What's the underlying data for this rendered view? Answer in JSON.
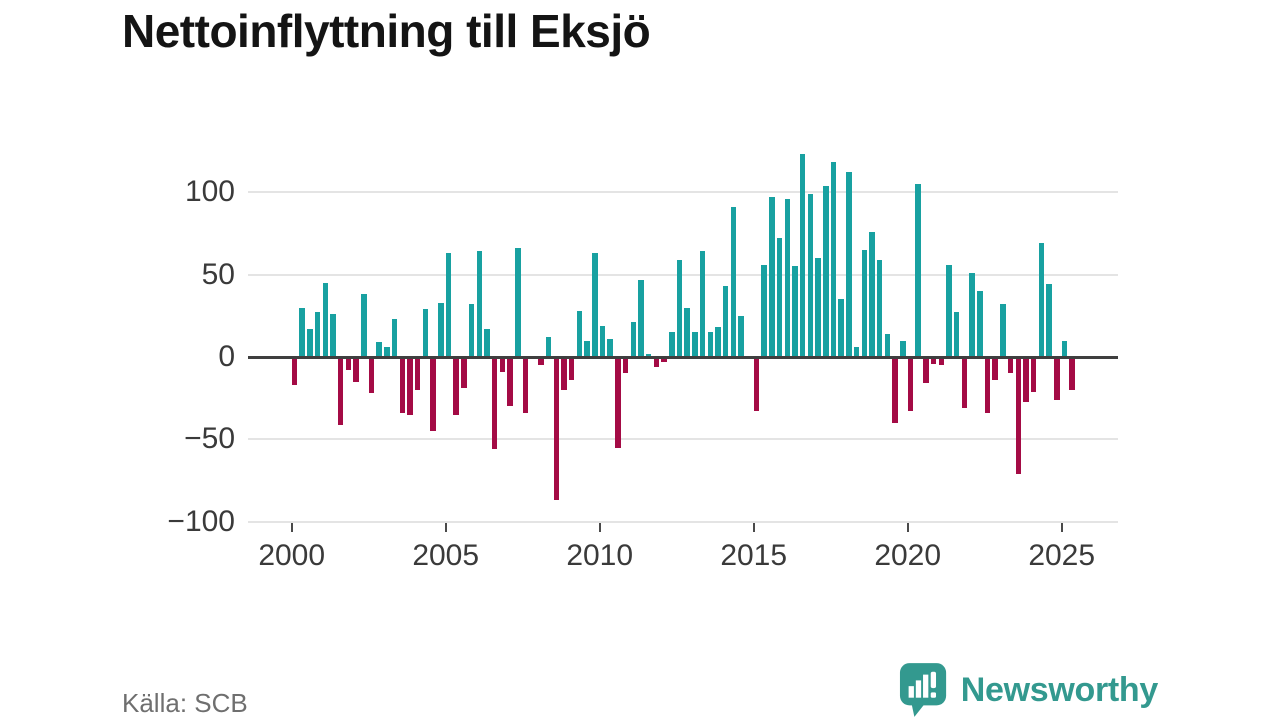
{
  "title": "Nettoinflyttning till Eksjö",
  "source": "Källa: SCB",
  "brand": {
    "name": "Newsworthy",
    "color": "#33998f"
  },
  "colors": {
    "positive": "#18a1a1",
    "negative": "#a40b45",
    "zero_line": "#3f3f3f",
    "gridline": "#e4e4e4"
  },
  "chart_data": {
    "type": "bar",
    "title": "Nettoinflyttning till Eksjö",
    "xlabel": "",
    "ylabel": "",
    "x_unit": "quarter",
    "start_year": 2000,
    "start_quarter": 1,
    "values": [
      -17,
      30,
      17,
      27,
      45,
      26,
      -41,
      -8,
      -15,
      38,
      -22,
      9,
      6,
      23,
      -34,
      -35,
      -20,
      29,
      -45,
      33,
      63,
      -35,
      -19,
      32,
      64,
      17,
      -56,
      -9,
      -30,
      66,
      -34,
      0,
      -5,
      12,
      -87,
      -20,
      -14,
      28,
      10,
      63,
      19,
      11,
      -55,
      -10,
      21,
      47,
      2,
      -6,
      -3,
      15,
      59,
      30,
      15,
      64,
      15,
      18,
      43,
      91,
      25,
      0,
      -33,
      56,
      97,
      72,
      96,
      55,
      123,
      99,
      60,
      104,
      118,
      35,
      112,
      6,
      65,
      76,
      59,
      14,
      -40,
      10,
      -33,
      105,
      -16,
      -4,
      -5,
      56,
      27,
      -31,
      51,
      40,
      -34,
      -14,
      32,
      -10,
      -71,
      -27,
      -21,
      69,
      44,
      -26,
      10,
      -20
    ],
    "x_tick_years": [
      2000,
      2005,
      2010,
      2015,
      2020,
      2025
    ],
    "y_ticks": [
      100,
      50,
      0,
      -50,
      -100
    ],
    "ylim": [
      -100,
      130
    ],
    "grid": "horizontal",
    "legend": "none",
    "positive_color": "#18a1a1",
    "negative_color": "#a40b45"
  }
}
